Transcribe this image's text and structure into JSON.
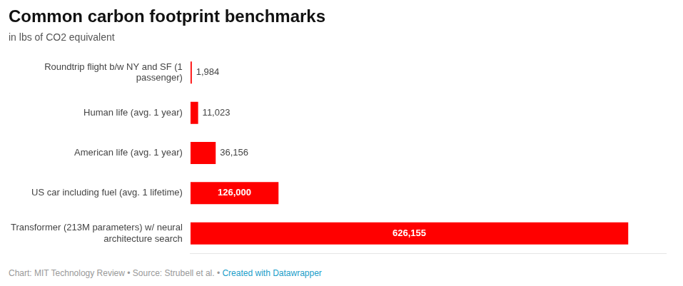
{
  "chart_data": {
    "type": "bar",
    "orientation": "horizontal",
    "title": "Common carbon footprint benchmarks",
    "subtitle": "in lbs of CO2 equivalent",
    "categories": [
      "Roundtrip flight b/w NY and SF (1\npassenger)",
      "Human life (avg. 1 year)",
      "American life (avg. 1 year)",
      "US car including fuel (avg. 1 lifetime)",
      "Transformer (213M parameters) w/ neural\narchitecture search"
    ],
    "values": [
      1984,
      11023,
      36156,
      126000,
      626155
    ],
    "value_labels": [
      "1,984",
      "11,023",
      "36,156",
      "126,000",
      "626,155"
    ],
    "color": "#ff0000",
    "xlim": [
      0,
      680000
    ],
    "grid": false,
    "tick_labels": "y",
    "data_labels": true,
    "annotations": [
      {
        "text": "Chart: MIT Technology Review • Source: Strubell et al. • ",
        "color": "#999999"
      },
      {
        "text": "Created with Datawrapper",
        "color": "#1a9ec9"
      }
    ]
  }
}
